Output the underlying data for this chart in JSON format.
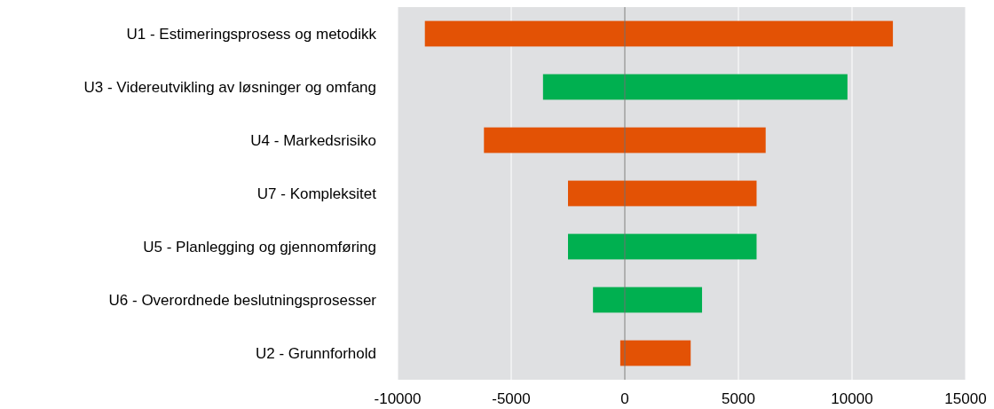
{
  "chart_data": {
    "type": "bar",
    "orientation": "horizontal",
    "categories": [
      "U1 - Estimeringsprosess og metodikk",
      "U3 - Videreutvikling av løsninger og omfang",
      "U4 - Markedsrisiko",
      "U7 - Kompleksitet",
      "U5 - Planlegging og gjennomføring",
      "U6 - Overordnede beslutningsprosesser",
      "U2 - Grunnforhold"
    ],
    "base": [
      -8800,
      -3600,
      -6200,
      -2500,
      -2500,
      -1400,
      -200
    ],
    "values": [
      20600,
      13400,
      12400,
      8300,
      8300,
      4800,
      3100
    ],
    "colors": [
      "#e35205",
      "#00b050",
      "#e35205",
      "#e35205",
      "#00b050",
      "#00b050",
      "#e35205"
    ],
    "xlim": [
      -10000,
      15000
    ],
    "xticks": [
      -10000,
      -5000,
      0,
      5000,
      10000,
      15000
    ],
    "grid": "x",
    "ref_lines": [
      {
        "axis": "x",
        "value": 0,
        "color": "#707070"
      }
    ]
  }
}
